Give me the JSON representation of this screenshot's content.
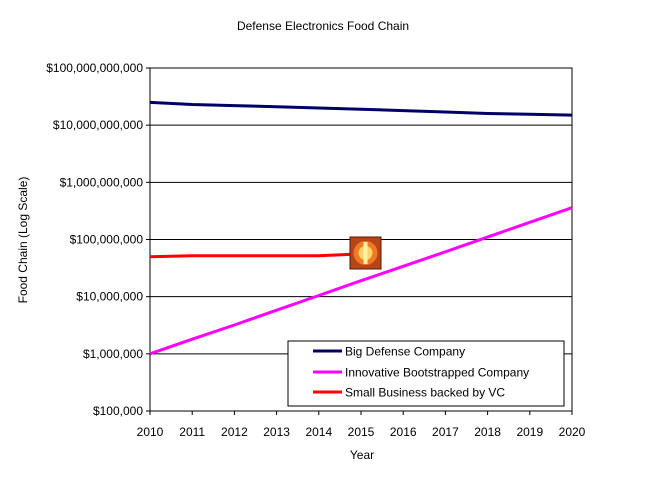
{
  "chart_data": {
    "type": "line",
    "title": "Defense Electronics Food Chain",
    "xlabel": "Year",
    "ylabel": "Food Chain (Log Scale)",
    "y_scale": "log",
    "ylim": [
      100000,
      100000000000
    ],
    "xlim": [
      2010,
      2020
    ],
    "x_ticks": [
      "2010",
      "2011",
      "2012",
      "2013",
      "2014",
      "2015",
      "2016",
      "2017",
      "2018",
      "2019",
      "2020"
    ],
    "y_ticks": [
      {
        "value": 100000,
        "label": "$100,000"
      },
      {
        "value": 1000000,
        "label": "$1,000,000"
      },
      {
        "value": 10000000,
        "label": "$10,000,000"
      },
      {
        "value": 100000000,
        "label": "$100,000,000"
      },
      {
        "value": 1000000000,
        "label": "$1,000,000,000"
      },
      {
        "value": 10000000000,
        "label": "$10,000,000,000"
      },
      {
        "value": 100000000000,
        "label": "$100,000,000,000"
      }
    ],
    "grid": "horizontal",
    "legend_position": "bottom-right",
    "series": [
      {
        "name": "Big Defense Company",
        "color": "#000066",
        "x": [
          2010,
          2011,
          2012,
          2013,
          2014,
          2015,
          2016,
          2017,
          2018,
          2019,
          2020
        ],
        "values": [
          25000000000,
          23000000000,
          22000000000,
          21000000000,
          20000000000,
          19000000000,
          18000000000,
          17000000000,
          16000000000,
          15500000000,
          15000000000
        ]
      },
      {
        "name": "Innovative Bootstrapped Company",
        "color": "#ff00ff",
        "x": [
          2010,
          2011,
          2012,
          2013,
          2014,
          2015,
          2016,
          2017,
          2018,
          2019,
          2020
        ],
        "values": [
          1000000,
          1800000,
          3200000,
          5800000,
          10500000,
          19000000,
          34000000,
          61000000,
          110000000,
          200000000,
          360000000
        ]
      },
      {
        "name": "Small Business backed by VC",
        "color": "#ff0000",
        "x": [
          2010,
          2011,
          2012,
          2013,
          2014,
          2015
        ],
        "values": [
          50000000,
          52000000,
          52000000,
          52000000,
          52000000,
          56000000
        ]
      }
    ],
    "annotation": {
      "type": "explosion-icon",
      "x": 2015,
      "y": 55000000
    }
  }
}
